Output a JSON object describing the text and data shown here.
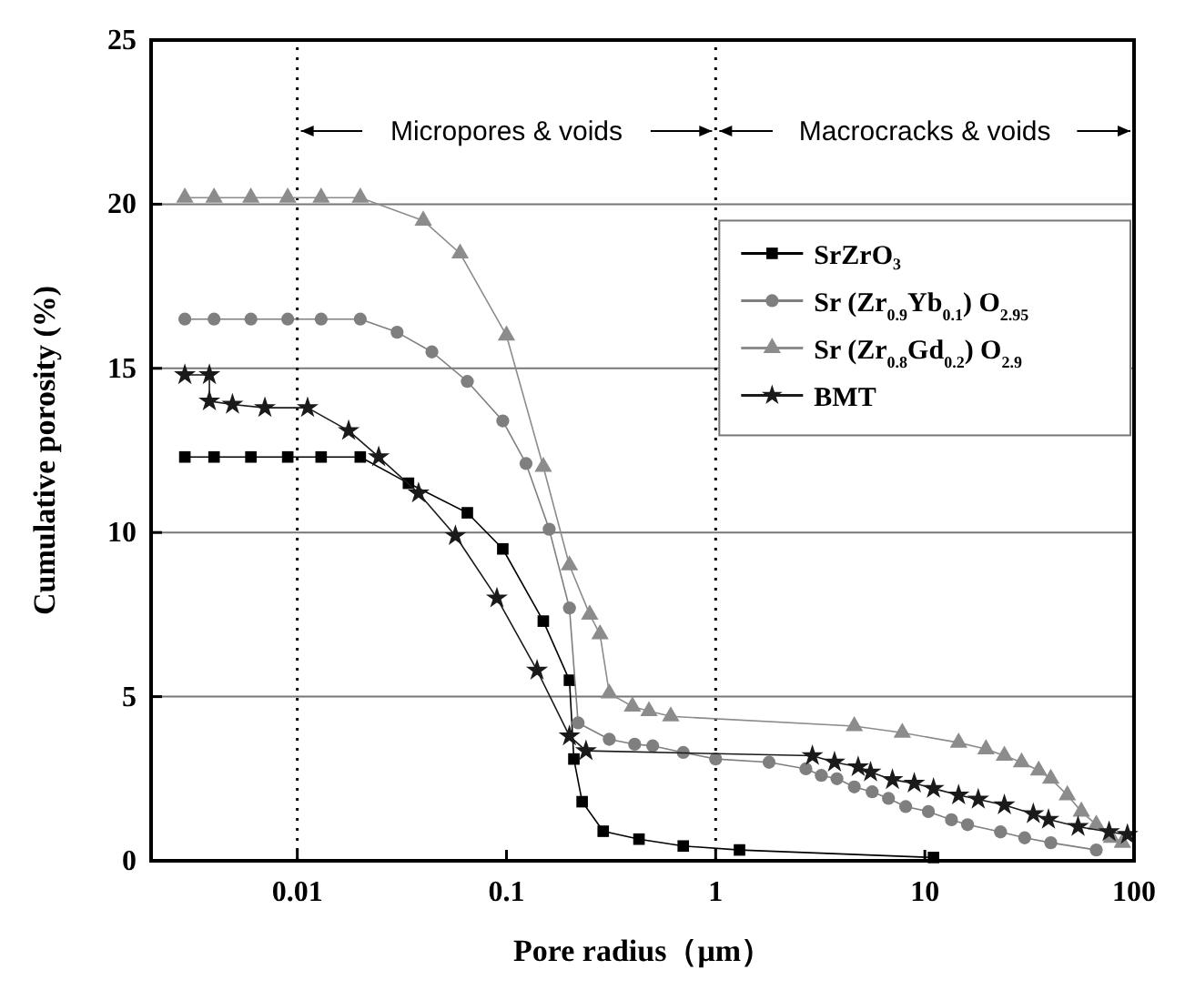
{
  "chart_data": {
    "type": "line",
    "xlabel": "Pore radius（μm）",
    "ylabel": "Cumulative porosity (%)",
    "log": "x",
    "xlim": [
      0.002,
      100
    ],
    "ylim": [
      0,
      25
    ],
    "xticks": [
      0.01,
      0.1,
      1,
      10,
      100
    ],
    "yticks": [
      0,
      5,
      10,
      15,
      20,
      25
    ],
    "grid": "y",
    "legend": "top right",
    "line_style": "solid",
    "ref_lines": [
      {
        "axis": "x",
        "value": 0.01,
        "line_style": "dotted",
        "color": "#000000"
      },
      {
        "axis": "x",
        "value": 1,
        "line_style": "dotted",
        "color": "#000000"
      }
    ],
    "annotations": [
      "Micropores & voids",
      "Macrocracks & voids"
    ],
    "series": [
      {
        "name": "SrZrO₃",
        "color": "#000000",
        "marker": "square",
        "x": [
          0.0029,
          0.004,
          0.006,
          0.009,
          0.013,
          0.02,
          0.034,
          0.065,
          0.096,
          0.15,
          0.2,
          0.21,
          0.23,
          0.29,
          0.43,
          0.7,
          1.3,
          11
        ],
        "values": [
          12.3,
          12.3,
          12.3,
          12.3,
          12.3,
          12.3,
          11.5,
          10.6,
          9.5,
          7.3,
          5.5,
          3.1,
          1.8,
          0.9,
          0.66,
          0.45,
          0.33,
          0.1
        ]
      },
      {
        "name": "Sr (Zr$_{0.9}$Yb$_{0.1}$) O$_{2.95}$",
        "color": "#7f7f7f",
        "marker": "circle",
        "x": [
          0.0029,
          0.004,
          0.006,
          0.009,
          0.013,
          0.02,
          0.03,
          0.044,
          0.065,
          0.096,
          0.124,
          0.16,
          0.2,
          0.22,
          0.31,
          0.41,
          0.5,
          0.7,
          1.0,
          1.8,
          2.7,
          3.2,
          3.8,
          4.6,
          5.6,
          6.7,
          8.1,
          10.4,
          13.4,
          16,
          23,
          30,
          40,
          66
        ],
        "values": [
          16.5,
          16.5,
          16.5,
          16.5,
          16.5,
          16.5,
          16.1,
          15.5,
          14.6,
          13.4,
          12.1,
          10.1,
          7.7,
          4.2,
          3.7,
          3.55,
          3.5,
          3.3,
          3.1,
          3.0,
          2.8,
          2.6,
          2.5,
          2.25,
          2.1,
          1.9,
          1.65,
          1.5,
          1.25,
          1.1,
          0.88,
          0.7,
          0.55,
          0.33
        ]
      },
      {
        "name": "Sr (Zr$_{0.8}$Gd$_{0.2}$) O$_{2.9}$",
        "color": "#8c8c8c",
        "marker": "triangle",
        "x": [
          0.0029,
          0.004,
          0.006,
          0.009,
          0.013,
          0.02,
          0.04,
          0.06,
          0.1,
          0.15,
          0.2,
          0.25,
          0.28,
          0.31,
          0.4,
          0.48,
          0.61,
          4.6,
          7.8,
          14.5,
          19.6,
          24,
          29,
          35,
          40,
          48,
          56,
          66,
          78,
          88
        ],
        "values": [
          20.2,
          20.2,
          20.2,
          20.2,
          20.2,
          20.2,
          19.5,
          18.5,
          16,
          12,
          9,
          7.5,
          6.9,
          5.1,
          4.7,
          4.56,
          4.4,
          4.1,
          3.9,
          3.6,
          3.4,
          3.2,
          3.0,
          2.75,
          2.5,
          2.0,
          1.5,
          1.1,
          0.7,
          0.55
        ]
      },
      {
        "name": "BMT",
        "color": "#1a1a1a",
        "marker": "star",
        "x": [
          0.0029,
          0.0038,
          0.0038,
          0.0049,
          0.007,
          0.0112,
          0.0176,
          0.0245,
          0.038,
          0.057,
          0.09,
          0.14,
          0.2,
          0.24,
          2.9,
          3.7,
          4.8,
          5.5,
          7.0,
          8.9,
          11,
          14.5,
          18,
          24,
          33,
          39,
          54,
          76,
          93
        ],
        "values": [
          14.8,
          14.8,
          14.0,
          13.9,
          13.8,
          13.8,
          13.1,
          12.3,
          11.2,
          9.9,
          8.0,
          5.8,
          3.8,
          3.35,
          3.2,
          3.0,
          2.86,
          2.7,
          2.47,
          2.36,
          2.2,
          2.0,
          1.87,
          1.7,
          1.43,
          1.26,
          1.04,
          0.88,
          0.8
        ]
      }
    ]
  }
}
